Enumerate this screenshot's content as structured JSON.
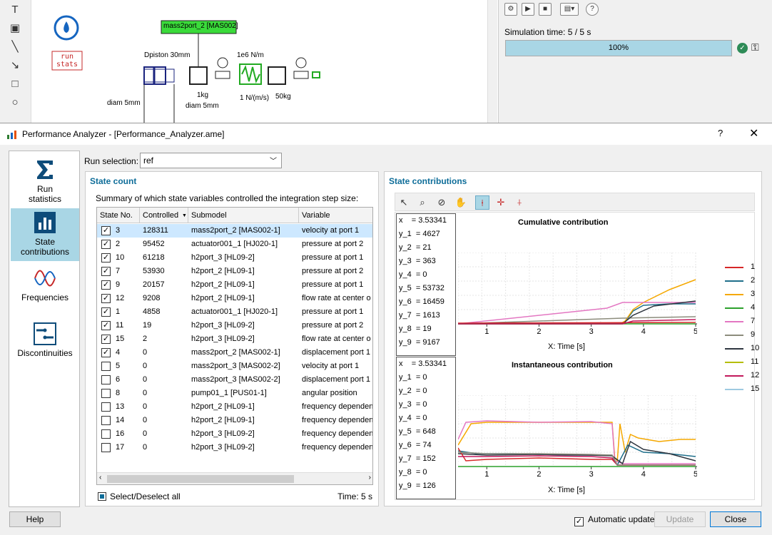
{
  "background": {
    "canvas_labels": {
      "mass_label": "mass2port_2 [MAS002]",
      "run_stats": "run\nstats",
      "dpiston": "Dpiston 30mm",
      "spring": "1e6 N/m",
      "damp": "1 N/(m/s)",
      "mass1": "1kg",
      "mass2": "50kg",
      "diam1": "diam 5mm",
      "diam2": "diam 5mm"
    },
    "sim_time": "Simulation time: 5 / 5 s",
    "progress_text": "100%",
    "progress_value": 1.0
  },
  "window": {
    "title": "Performance Analyzer - [Performance_Analyzer.ame]",
    "help_glyph": "?",
    "close_glyph": "✕"
  },
  "sidebar": {
    "items": [
      {
        "label": "Run\nstatistics",
        "icon": "sigma-icon",
        "selected": false
      },
      {
        "label": "State\ncontributions",
        "icon": "bar-chart-icon",
        "selected": true
      },
      {
        "label": "Frequencies",
        "icon": "wave-icon",
        "selected": false
      },
      {
        "label": "Discontinuities",
        "icon": "discontinuity-icon",
        "selected": false
      }
    ]
  },
  "run_selection": {
    "label": "Run selection:",
    "value": "ref"
  },
  "state_count": {
    "title": "State count",
    "summary": "Summary of which state variables controlled the integration step size:",
    "columns": [
      "State No.",
      "Controlled",
      "Submodel",
      "Variable"
    ],
    "rows": [
      {
        "no": "3",
        "controlled": "128311",
        "submodel": "mass2port_2 [MAS002-1]",
        "variable": "velocity at port 1",
        "checked": true,
        "selected": true
      },
      {
        "no": "2",
        "controlled": "95452",
        "submodel": "actuator001_1 [HJ020-1]",
        "variable": "pressure at port 2",
        "checked": true
      },
      {
        "no": "10",
        "controlled": "61218",
        "submodel": "h2port_3 [HL09-2]",
        "variable": "pressure at port 1",
        "checked": true
      },
      {
        "no": "7",
        "controlled": "53930",
        "submodel": "h2port_2 [HL09-1]",
        "variable": "pressure at port 2",
        "checked": true
      },
      {
        "no": "9",
        "controlled": "20157",
        "submodel": "h2port_2 [HL09-1]",
        "variable": "pressure at port 1",
        "checked": true
      },
      {
        "no": "12",
        "controlled": "9208",
        "submodel": "h2port_2 [HL09-1]",
        "variable": "flow rate at center o",
        "checked": true
      },
      {
        "no": "1",
        "controlled": "4858",
        "submodel": "actuator001_1 [HJ020-1]",
        "variable": "pressure at port 1",
        "checked": true
      },
      {
        "no": "11",
        "controlled": "19",
        "submodel": "h2port_3 [HL09-2]",
        "variable": "pressure at port 2",
        "checked": true
      },
      {
        "no": "15",
        "controlled": "2",
        "submodel": "h2port_3 [HL09-2]",
        "variable": "flow rate at center o",
        "checked": true
      },
      {
        "no": "4",
        "controlled": "0",
        "submodel": "mass2port_2 [MAS002-1]",
        "variable": "displacement port 1",
        "checked": true
      },
      {
        "no": "5",
        "controlled": "0",
        "submodel": "mass2port_3 [MAS002-2]",
        "variable": "velocity at port 1",
        "checked": false
      },
      {
        "no": "6",
        "controlled": "0",
        "submodel": "mass2port_3 [MAS002-2]",
        "variable": "displacement port 1",
        "checked": false
      },
      {
        "no": "8",
        "controlled": "0",
        "submodel": "pump01_1 [PUS01-1]",
        "variable": "angular position",
        "checked": false
      },
      {
        "no": "13",
        "controlled": "0",
        "submodel": "h2port_2 [HL09-1]",
        "variable": "frequency dependen",
        "checked": false
      },
      {
        "no": "14",
        "controlled": "0",
        "submodel": "h2port_2 [HL09-1]",
        "variable": "frequency dependen",
        "checked": false
      },
      {
        "no": "16",
        "controlled": "0",
        "submodel": "h2port_3 [HL09-2]",
        "variable": "frequency dependen",
        "checked": false
      },
      {
        "no": "17",
        "controlled": "0",
        "submodel": "h2port_3 [HL09-2]",
        "variable": "frequency dependen",
        "checked": false
      }
    ],
    "select_all": "Select/Deselect all",
    "time": "Time: 5 s"
  },
  "state_contrib": {
    "title": "State contributions",
    "cumulative": {
      "title": "Cumulative contribution",
      "readout": [
        "x    = 3.53341",
        "y_1  = 4627",
        "y_2  = 21",
        "y_3  = 363",
        "y_4  = 0",
        "y_5  = 53732",
        "y_6  = 16459",
        "y_7  = 1613",
        "y_8  = 19",
        "y_9  = 9167"
      ]
    },
    "instantaneous": {
      "title": "Instantaneous contribution",
      "readout": [
        "x    = 3.53341",
        "y_1  = 0",
        "y_2  = 0",
        "y_3  = 0",
        "y_4  = 0",
        "y_5  = 648",
        "y_6  = 74",
        "y_7  = 152",
        "y_8  = 0",
        "y_9  = 126"
      ]
    },
    "xlabel": "X: Time [s]",
    "xticks": [
      "1",
      "2",
      "3",
      "4",
      "5"
    ],
    "legend": [
      {
        "name": "1",
        "color": "#d62728"
      },
      {
        "name": "2",
        "color": "#1f6f8b"
      },
      {
        "name": "3",
        "color": "#f5a800"
      },
      {
        "name": "4",
        "color": "#2ca02c"
      },
      {
        "name": "7",
        "color": "#e377c2"
      },
      {
        "name": "9",
        "color": "#8c8c7c"
      },
      {
        "name": "10",
        "color": "#2f3640"
      },
      {
        "name": "11",
        "color": "#b5bd00"
      },
      {
        "name": "12",
        "color": "#c2185b"
      },
      {
        "name": "15",
        "color": "#9ecae1"
      }
    ]
  },
  "footer": {
    "help": "Help",
    "auto_update": "Automatic update",
    "auto_checked": true,
    "update": "Update",
    "close": "Close"
  }
}
